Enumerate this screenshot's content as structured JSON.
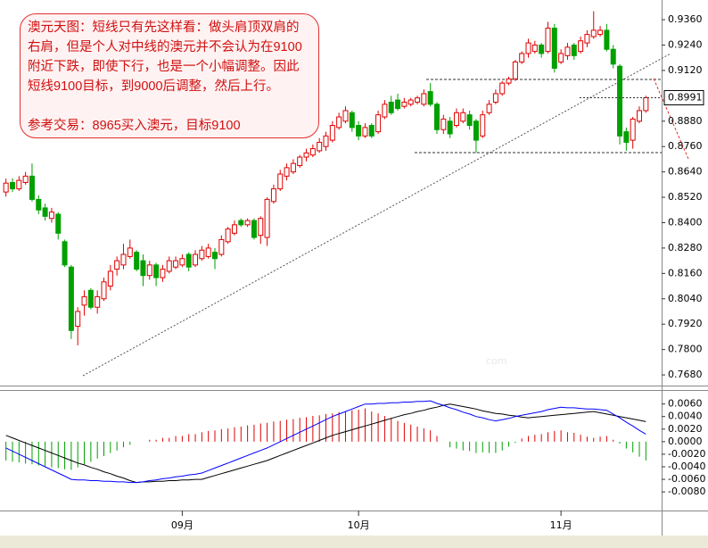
{
  "chart_data": [
    {
      "type": "candlestick",
      "annotations": [
        "澳元天图：短线只有先这样看：做头肩顶双肩的右肩，但是个人对中线的澳元并不会认为在9100附近下跌，即使下行，也是一个小幅调整。因此短线9100目标，到9000后调整，然后上行。",
        "参考交易：8965买入澳元，目标9100"
      ],
      "watermark": "com",
      "categories": [
        null,
        null,
        null,
        null,
        null,
        null,
        null,
        null,
        null,
        null,
        null,
        null,
        null,
        null,
        null,
        null,
        null,
        null,
        null,
        null,
        null,
        null,
        null,
        null,
        null,
        null,
        null,
        "09月",
        null,
        null,
        null,
        null,
        null,
        null,
        null,
        null,
        null,
        null,
        null,
        null,
        null,
        null,
        null,
        null,
        null,
        null,
        null,
        null,
        null,
        null,
        null,
        null,
        null,
        null,
        "10月",
        null,
        null,
        null,
        null,
        null,
        null,
        null,
        null,
        null,
        null,
        null,
        null,
        null,
        null,
        null,
        null,
        null,
        null,
        null,
        null,
        null,
        null,
        null,
        null,
        null,
        null,
        null,
        null,
        null,
        null,
        "11月",
        null,
        null,
        null,
        null,
        null,
        null,
        null,
        null,
        null,
        null,
        null,
        null,
        null
      ],
      "open": [
        0.8545,
        0.859,
        0.856,
        0.859,
        0.862,
        0.851,
        0.847,
        0.842,
        0.844,
        0.831,
        0.819,
        0.791,
        0.801,
        0.808,
        0.8,
        0.804,
        0.81,
        0.818,
        0.82,
        0.824,
        0.826,
        0.822,
        0.815,
        0.82,
        0.814,
        0.817,
        0.819,
        0.82,
        0.825,
        0.82,
        0.823,
        0.824,
        0.826,
        0.825,
        0.831,
        0.835,
        0.841,
        0.839,
        0.841,
        0.834,
        0.833,
        0.85,
        0.856,
        0.862,
        0.864,
        0.867,
        0.871,
        0.872,
        0.874,
        0.876,
        0.879,
        0.885,
        0.888,
        0.892,
        0.886,
        0.881,
        0.886,
        0.883,
        0.89,
        0.897,
        0.898,
        0.895,
        0.896,
        0.897,
        0.896,
        0.902,
        0.896,
        0.884,
        0.888,
        0.886,
        0.888,
        0.891,
        0.888,
        0.881,
        0.892,
        0.897,
        0.901,
        0.906,
        0.908,
        0.916,
        0.92,
        0.921,
        0.924,
        0.921,
        0.932,
        0.916,
        0.919,
        0.924,
        0.921,
        0.925,
        0.928,
        0.929,
        0.931,
        0.922,
        0.914,
        0.883,
        0.879,
        0.888,
        0.893
      ],
      "high": [
        0.8608,
        0.861,
        0.862,
        0.864,
        0.868,
        0.853,
        0.849,
        0.847,
        0.845,
        0.832,
        0.82,
        0.8,
        0.808,
        0.809,
        0.808,
        0.814,
        0.82,
        0.824,
        0.83,
        0.832,
        0.827,
        0.825,
        0.822,
        0.821,
        0.82,
        0.824,
        0.824,
        0.825,
        0.826,
        0.827,
        0.829,
        0.83,
        0.828,
        0.834,
        0.838,
        0.841,
        0.842,
        0.842,
        0.842,
        0.843,
        0.852,
        0.858,
        0.865,
        0.868,
        0.87,
        0.872,
        0.875,
        0.877,
        0.88,
        0.883,
        0.888,
        0.892,
        0.895,
        0.893,
        0.888,
        0.887,
        0.887,
        0.893,
        0.898,
        0.9,
        0.901,
        0.899,
        0.899,
        0.9,
        0.903,
        0.906,
        0.897,
        0.891,
        0.89,
        0.894,
        0.894,
        0.893,
        0.889,
        0.893,
        0.898,
        0.903,
        0.907,
        0.909,
        0.917,
        0.921,
        0.927,
        0.926,
        0.925,
        0.935,
        0.934,
        0.922,
        0.925,
        0.925,
        0.928,
        0.931,
        0.94,
        0.933,
        0.934,
        0.924,
        0.915,
        0.885,
        0.89,
        0.895,
        0.9
      ],
      "low": [
        0.8523,
        0.8545,
        0.855,
        0.858,
        0.85,
        0.844,
        0.841,
        0.84,
        0.832,
        0.819,
        0.785,
        0.782,
        0.796,
        0.799,
        0.797,
        0.803,
        0.808,
        0.815,
        0.818,
        0.823,
        0.817,
        0.81,
        0.813,
        0.81,
        0.812,
        0.816,
        0.818,
        0.819,
        0.817,
        0.819,
        0.822,
        0.823,
        0.818,
        0.824,
        0.83,
        0.834,
        0.838,
        0.838,
        0.832,
        0.83,
        0.829,
        0.849,
        0.855,
        0.86,
        0.863,
        0.866,
        0.869,
        0.871,
        0.873,
        0.874,
        0.878,
        0.884,
        0.887,
        0.883,
        0.879,
        0.88,
        0.88,
        0.882,
        0.889,
        0.891,
        0.893,
        0.894,
        0.895,
        0.896,
        0.895,
        0.895,
        0.882,
        0.882,
        0.88,
        0.885,
        0.887,
        0.884,
        0.873,
        0.88,
        0.891,
        0.896,
        0.9,
        0.905,
        0.907,
        0.915,
        0.918,
        0.92,
        0.918,
        0.92,
        0.911,
        0.915,
        0.917,
        0.917,
        0.92,
        0.923,
        0.927,
        0.928,
        0.921,
        0.913,
        0.877,
        0.874,
        0.875,
        0.887,
        0.892
      ],
      "close": [
        0.8587,
        0.856,
        0.86,
        0.862,
        0.851,
        0.846,
        0.843,
        0.845,
        0.835,
        0.82,
        0.789,
        0.798,
        0.805,
        0.8,
        0.805,
        0.812,
        0.817,
        0.822,
        0.825,
        0.828,
        0.818,
        0.815,
        0.82,
        0.814,
        0.818,
        0.822,
        0.822,
        0.823,
        0.819,
        0.825,
        0.827,
        0.828,
        0.823,
        0.832,
        0.837,
        0.839,
        0.839,
        0.841,
        0.833,
        0.842,
        0.851,
        0.856,
        0.863,
        0.866,
        0.868,
        0.871,
        0.873,
        0.875,
        0.878,
        0.881,
        0.886,
        0.89,
        0.893,
        0.885,
        0.881,
        0.885,
        0.881,
        0.891,
        0.896,
        0.892,
        0.894,
        0.897,
        0.898,
        0.899,
        0.901,
        0.896,
        0.884,
        0.889,
        0.882,
        0.892,
        0.892,
        0.886,
        0.879,
        0.891,
        0.896,
        0.901,
        0.906,
        0.908,
        0.916,
        0.92,
        0.925,
        0.924,
        0.92,
        0.932,
        0.913,
        0.92,
        0.923,
        0.919,
        0.926,
        0.929,
        0.931,
        0.931,
        0.922,
        0.915,
        0.881,
        0.878,
        0.889,
        0.893,
        0.8991
      ],
      "up_color": "#e00000",
      "down_color": "#00a000",
      "last_price": 0.8991,
      "ylim": [
        0.7638,
        0.9432
      ],
      "yticks": [
        {
          "value": 0.936,
          "label": "0.9360"
        },
        {
          "value": 0.924,
          "label": "0.9240"
        },
        {
          "value": 0.912,
          "label": "0.9120"
        },
        {
          "value": 0.888,
          "label": "0.8880"
        },
        {
          "value": 0.876,
          "label": "0.8760"
        },
        {
          "value": 0.864,
          "label": "0.8640"
        },
        {
          "value": 0.852,
          "label": "0.8520"
        },
        {
          "value": 0.84,
          "label": "0.8400"
        },
        {
          "value": 0.828,
          "label": "0.8280"
        },
        {
          "value": 0.816,
          "label": "0.8160"
        },
        {
          "value": 0.804,
          "label": "0.8040"
        },
        {
          "value": 0.792,
          "label": "0.7920"
        },
        {
          "value": 0.78,
          "label": "0.7800"
        },
        {
          "value": 0.768,
          "label": "0.7680"
        }
      ]
    },
    {
      "type": "macd",
      "series": [
        {
          "color": "#000000",
          "values": [
            0.001,
            0.0006,
            0.0002,
            -0.0002,
            -0.0006,
            -0.001,
            -0.0014,
            -0.0018,
            -0.0022,
            -0.0026,
            -0.003,
            -0.0034,
            -0.0037,
            -0.0041,
            -0.0044,
            -0.0048,
            -0.0051,
            -0.0055,
            -0.0058,
            -0.0062,
            -0.0065,
            -0.0064,
            -0.0064,
            -0.0063,
            -0.0063,
            -0.0062,
            -0.0062,
            -0.0061,
            -0.0061,
            -0.006,
            -0.006,
            -0.0057,
            -0.0054,
            -0.0051,
            -0.0048,
            -0.0045,
            -0.0042,
            -0.0039,
            -0.0036,
            -0.0033,
            -0.003,
            -0.0026,
            -0.0022,
            -0.0018,
            -0.0014,
            -0.001,
            -0.0006,
            -0.0002,
            0.0002,
            0.0006,
            0.001,
            0.0013,
            0.0016,
            0.0019,
            0.0022,
            0.0025,
            0.0028,
            0.0031,
            0.0034,
            0.0037,
            0.004,
            0.0043,
            0.0045,
            0.0048,
            0.005,
            0.0053,
            0.0055,
            0.0058,
            0.006,
            0.0058,
            0.0056,
            0.0054,
            0.0052,
            0.0049,
            0.0047,
            0.0045,
            0.0044,
            0.0042,
            0.0041,
            0.0039,
            0.0038,
            0.0039,
            0.004,
            0.0041,
            0.0042,
            0.0043,
            0.0044,
            0.0045,
            0.0046,
            0.0047,
            0.0048,
            0.0046,
            0.0044,
            0.0042,
            0.004,
            0.0038,
            0.0036,
            0.0034,
            0.0032
          ]
        },
        {
          "color": "#0000ff",
          "values": [
            -0.001,
            -0.0015,
            -0.002,
            -0.0025,
            -0.003,
            -0.0035,
            -0.004,
            -0.0045,
            -0.005,
            -0.0055,
            -0.006,
            -0.0061,
            -0.0061,
            -0.0062,
            -0.0062,
            -0.0063,
            -0.0063,
            -0.0064,
            -0.0064,
            -0.0065,
            -0.0065,
            -0.0064,
            -0.0062,
            -0.0061,
            -0.0059,
            -0.0058,
            -0.0056,
            -0.0055,
            -0.0053,
            -0.0052,
            -0.005,
            -0.0046,
            -0.0042,
            -0.0038,
            -0.0034,
            -0.003,
            -0.0026,
            -0.0022,
            -0.0018,
            -0.0014,
            -0.001,
            -0.0005,
            0.0,
            0.0005,
            0.001,
            0.0015,
            0.002,
            0.0025,
            0.003,
            0.0035,
            0.004,
            0.0044,
            0.0048,
            0.0052,
            0.0056,
            0.006,
            0.006,
            0.0061,
            0.0061,
            0.0062,
            0.0062,
            0.0063,
            0.0063,
            0.0064,
            0.0064,
            0.0065,
            0.0061,
            0.0058,
            0.0054,
            0.0051,
            0.0047,
            0.0044,
            0.004,
            0.0038,
            0.0035,
            0.0033,
            0.0035,
            0.0037,
            0.004,
            0.0042,
            0.0044,
            0.0046,
            0.0048,
            0.0051,
            0.0053,
            0.0055,
            0.0054,
            0.0054,
            0.0053,
            0.0052,
            0.0052,
            0.0051,
            0.005,
            0.0044,
            0.0038,
            0.0031,
            0.0025,
            0.0018,
            0.0012
          ]
        }
      ],
      "histogram": {
        "up_color": "#e00000",
        "down_color": "#00a000",
        "values": [
          -0.003,
          -0.0032,
          -0.0033,
          -0.0035,
          -0.0036,
          -0.0038,
          -0.0039,
          -0.0041,
          -0.0042,
          -0.0044,
          -0.0045,
          -0.0041,
          -0.0036,
          -0.0032,
          -0.0027,
          -0.0023,
          -0.0018,
          -0.0014,
          -0.0009,
          -0.0005,
          0,
          0,
          0.0003,
          0.0003,
          0.0006,
          0.0006,
          0.0009,
          0.0009,
          0.0012,
          0.0012,
          0.0015,
          0.0017,
          0.0018,
          0.002,
          0.0021,
          0.0023,
          0.0024,
          0.0026,
          0.0027,
          0.0029,
          0.003,
          0.0032,
          0.0033,
          0.0035,
          0.0036,
          0.0038,
          0.0039,
          0.0041,
          0.0042,
          0.0044,
          0.0045,
          0.0047,
          0.0048,
          0.005,
          0.0051,
          0.0053,
          0.0048,
          0.0045,
          0.0041,
          0.0038,
          0.0033,
          0.003,
          0.0027,
          0.0024,
          0.0021,
          0.0018,
          0.0009,
          0,
          -0.0009,
          -0.0011,
          -0.0014,
          -0.0015,
          -0.0018,
          -0.0017,
          -0.0018,
          -0.0018,
          -0.0014,
          -0.0008,
          -0.0002,
          0.0005,
          0.0009,
          0.0011,
          0.0012,
          0.0015,
          0.0017,
          0.0018,
          0.0015,
          0.0014,
          0.0011,
          0.0008,
          0.0006,
          0.0008,
          0.0009,
          0.0003,
          -0.0003,
          -0.0011,
          -0.0017,
          -0.0024,
          -0.003
        ]
      },
      "ylim": [
        -0.0104,
        0.0078
      ],
      "yticks": [
        {
          "value": 0.006,
          "label": "0.0060"
        },
        {
          "value": 0.004,
          "label": "0.0040"
        },
        {
          "value": 0.002,
          "label": "0.0020"
        },
        {
          "value": 0,
          "label": "0.0000"
        },
        {
          "value": -0.002,
          "label": "-0.0020"
        },
        {
          "value": -0.004,
          "label": "-0.0040"
        },
        {
          "value": -0.006,
          "label": "-0.0060"
        },
        {
          "value": -0.008,
          "label": "-0.0080"
        }
      ]
    }
  ]
}
